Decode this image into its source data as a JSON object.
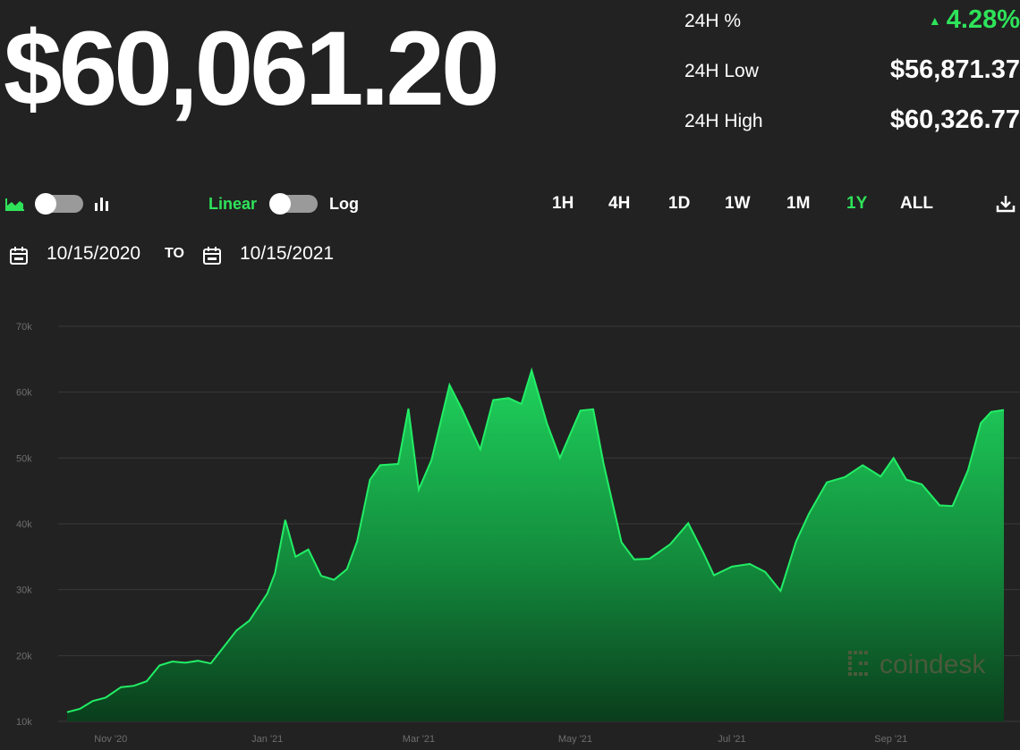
{
  "header": {
    "price": "$60,061.20",
    "stats": [
      {
        "label": "24H %",
        "value": "4.28%",
        "trend": "up"
      },
      {
        "label": "24H Low",
        "value": "$56,871.37"
      },
      {
        "label": "24H High",
        "value": "$60,326.77"
      }
    ]
  },
  "controls": {
    "scale_linear": "Linear",
    "scale_log": "Log",
    "ranges": [
      "1H",
      "4H",
      "1D",
      "1W",
      "1M",
      "1Y",
      "ALL"
    ],
    "active_range": "1Y"
  },
  "date_range": {
    "from": "10/15/2020",
    "to_label": "TO",
    "to": "10/15/2021"
  },
  "watermark": "coindesk",
  "colors": {
    "background": "#222222",
    "accent": "#2ee35a",
    "line": "#22ee66"
  },
  "icons": [
    "area-chart-icon",
    "bar-chart-icon",
    "calendar-icon",
    "download-icon",
    "triangle-up-icon"
  ],
  "chart_data": {
    "type": "area",
    "x_start": "2020-10-15",
    "x_end": "2021-10-15",
    "x_tick_labels": [
      "Nov '20",
      "Jan '21",
      "Mar '21",
      "May '21",
      "Jul '21",
      "Sep '21"
    ],
    "y_tick_labels": [
      "10k",
      "20k",
      "30k",
      "40k",
      "50k",
      "60k",
      "70k"
    ],
    "ylim": [
      10000,
      70000
    ],
    "grid": true,
    "series": [
      {
        "x": [
          "2020-10-15",
          "2020-10-20",
          "2020-10-25",
          "2020-10-30",
          "2020-11-05",
          "2020-11-10",
          "2020-11-15",
          "2020-11-20",
          "2020-11-25",
          "2020-11-30",
          "2020-12-05",
          "2020-12-10",
          "2020-12-15",
          "2020-12-20",
          "2020-12-25",
          "2021-01-01",
          "2021-01-04",
          "2021-01-08",
          "2021-01-12",
          "2021-01-17",
          "2021-01-22",
          "2021-01-27",
          "2021-02-01",
          "2021-02-05",
          "2021-02-10",
          "2021-02-14",
          "2021-02-21",
          "2021-02-25",
          "2021-03-01",
          "2021-03-06",
          "2021-03-13",
          "2021-03-18",
          "2021-03-25",
          "2021-03-30",
          "2021-04-05",
          "2021-04-10",
          "2021-04-14",
          "2021-04-20",
          "2021-04-25",
          "2021-05-03",
          "2021-05-08",
          "2021-05-12",
          "2021-05-19",
          "2021-05-24",
          "2021-05-30",
          "2021-06-07",
          "2021-06-14",
          "2021-06-20",
          "2021-06-24",
          "2021-07-01",
          "2021-07-08",
          "2021-07-14",
          "2021-07-20",
          "2021-07-26",
          "2021-07-31",
          "2021-08-07",
          "2021-08-14",
          "2021-08-21",
          "2021-08-28",
          "2021-09-02",
          "2021-09-07",
          "2021-09-13",
          "2021-09-20",
          "2021-09-25",
          "2021-10-01",
          "2021-10-06",
          "2021-10-10",
          "2021-10-15"
        ],
        "values": [
          11400,
          11900,
          13100,
          13600,
          15200,
          15400,
          16100,
          18500,
          19100,
          18900,
          19200,
          18800,
          21300,
          23800,
          25300,
          29400,
          32500,
          40600,
          35000,
          36100,
          32100,
          31500,
          33100,
          37300,
          46700,
          48900,
          49100,
          57500,
          45200,
          49700,
          61100,
          57300,
          51300,
          58800,
          59100,
          58200,
          63300,
          55200,
          50000,
          57200,
          57400,
          49200,
          37200,
          34600,
          34700,
          36900,
          40100,
          35500,
          32200,
          33500,
          33900,
          32700,
          29800,
          37300,
          41500,
          46300,
          47100,
          48900,
          47200,
          50000,
          46700,
          46000,
          42800,
          42700,
          48100,
          55300,
          57000,
          57300
        ]
      }
    ]
  }
}
